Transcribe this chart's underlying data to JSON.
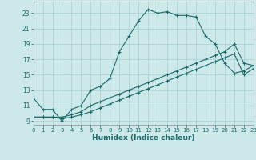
{
  "xlabel": "Humidex (Indice chaleur)",
  "background_color": "#cce8e8",
  "grid_color": "#aad4d4",
  "line_color": "#1a6b6b",
  "spine_color": "#888888",
  "xlim": [
    0,
    23
  ],
  "ylim": [
    8.5,
    24.5
  ],
  "yticks": [
    9,
    11,
    13,
    15,
    17,
    19,
    21,
    23
  ],
  "xticks": [
    0,
    1,
    2,
    3,
    4,
    5,
    6,
    7,
    8,
    9,
    10,
    11,
    12,
    13,
    14,
    15,
    16,
    17,
    18,
    19,
    20,
    21,
    22,
    23
  ],
  "curve1_x": [
    0,
    1,
    2,
    3,
    4,
    5,
    6,
    7,
    8,
    9,
    10,
    11,
    12,
    13,
    14,
    15,
    16,
    17,
    18,
    19,
    20,
    21,
    22,
    23
  ],
  "curve1_y": [
    12.0,
    10.5,
    10.5,
    9.0,
    10.5,
    11.0,
    13.0,
    13.5,
    14.5,
    18.0,
    20.0,
    22.0,
    23.5,
    23.0,
    23.2,
    22.7,
    22.7,
    22.5,
    20.0,
    19.0,
    16.5,
    15.2,
    15.5,
    16.2
  ],
  "curve2_x": [
    0,
    1,
    2,
    3,
    4,
    5,
    6,
    7,
    8,
    9,
    10,
    11,
    12,
    13,
    14,
    15,
    16,
    17,
    18,
    19,
    20,
    21,
    22,
    23
  ],
  "curve2_y": [
    9.5,
    9.5,
    9.5,
    9.5,
    9.8,
    10.2,
    11.0,
    11.5,
    12.0,
    12.5,
    13.0,
    13.5,
    14.0,
    14.5,
    15.0,
    15.5,
    16.0,
    16.5,
    17.0,
    17.5,
    18.0,
    19.0,
    16.5,
    16.2
  ],
  "curve3_x": [
    0,
    1,
    2,
    3,
    4,
    5,
    6,
    7,
    8,
    9,
    10,
    11,
    12,
    13,
    14,
    15,
    16,
    17,
    18,
    19,
    20,
    21,
    22,
    23
  ],
  "curve3_y": [
    9.5,
    9.5,
    9.5,
    9.3,
    9.5,
    9.8,
    10.2,
    10.7,
    11.2,
    11.7,
    12.2,
    12.7,
    13.2,
    13.7,
    14.2,
    14.7,
    15.2,
    15.7,
    16.2,
    16.7,
    17.2,
    17.7,
    15.0,
    15.8
  ]
}
